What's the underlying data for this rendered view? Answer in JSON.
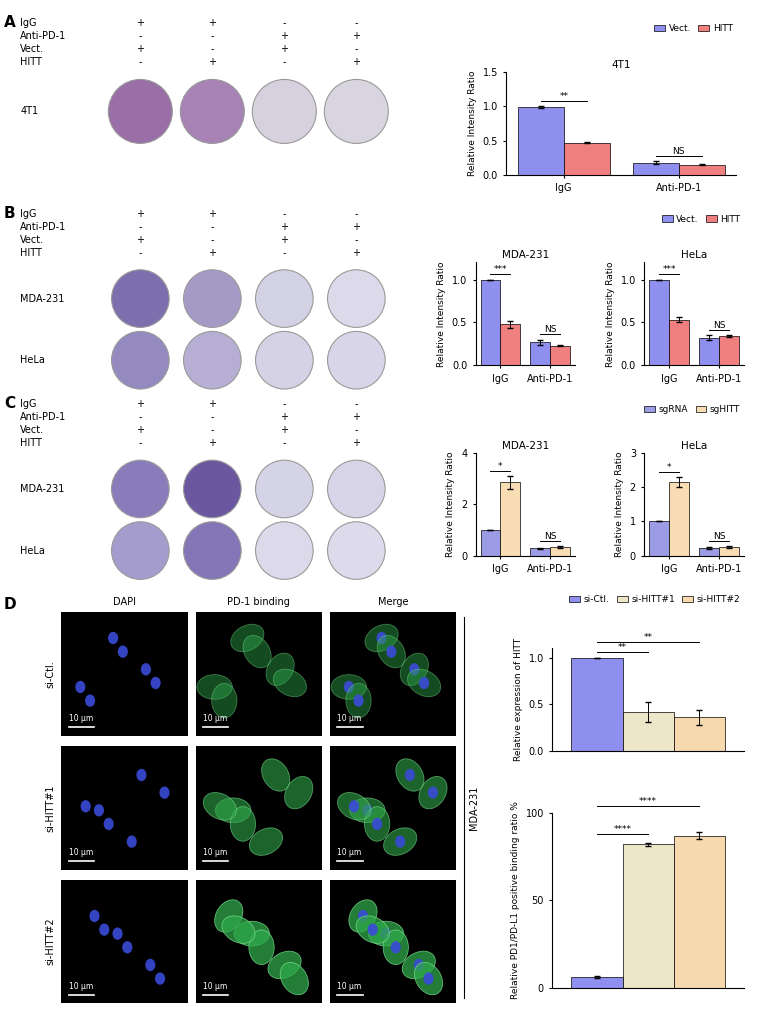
{
  "panel_labels": [
    "A",
    "B",
    "C",
    "D"
  ],
  "well_panels": [
    {
      "conditions": [
        {
          "label": "IgG",
          "signs": [
            "+",
            "+",
            "-",
            "-"
          ]
        },
        {
          "label": "Anti-PD-1",
          "signs": [
            "-",
            "-",
            "+",
            "+"
          ]
        },
        {
          "label": "Vect.",
          "signs": [
            "+",
            "-",
            "+",
            "-"
          ]
        },
        {
          "label": "HITT",
          "signs": [
            "-",
            "+",
            "-",
            "+"
          ]
        }
      ],
      "rows": [
        {
          "label": "4T1",
          "colors": [
            "#9a6fa8",
            "#a783b5",
            "#d7d0de",
            "#d9d5e0"
          ]
        }
      ]
    },
    {
      "conditions": [
        {
          "label": "IgG",
          "signs": [
            "+",
            "+",
            "-",
            "-"
          ]
        },
        {
          "label": "Anti-PD-1",
          "signs": [
            "-",
            "-",
            "+",
            "+"
          ]
        },
        {
          "label": "Vect.",
          "signs": [
            "+",
            "-",
            "+",
            "-"
          ]
        },
        {
          "label": "HITT",
          "signs": [
            "-",
            "+",
            "-",
            "+"
          ]
        }
      ],
      "rows": [
        {
          "label": "MDA-231",
          "colors": [
            "#7d6fae",
            "#a59ac6",
            "#d3d1e4",
            "#dcdaea"
          ]
        },
        {
          "label": "HeLa",
          "colors": [
            "#948ac0",
            "#b7aed3",
            "#d5d2e6",
            "#d9d5e8"
          ]
        }
      ]
    },
    {
      "conditions": [
        {
          "label": "IgG",
          "signs": [
            "+",
            "+",
            "-",
            "-"
          ]
        },
        {
          "label": "Anti-PD-1",
          "signs": [
            "-",
            "-",
            "+",
            "+"
          ]
        },
        {
          "label": "Vect.",
          "signs": [
            "+",
            "-",
            "+",
            "-"
          ]
        },
        {
          "label": "HITT",
          "signs": [
            "-",
            "+",
            "-",
            "+"
          ]
        }
      ],
      "rows": [
        {
          "label": "MDA-231",
          "colors": [
            "#8a7cba",
            "#6b56a0",
            "#d5d3e6",
            "#d7d4e7"
          ]
        },
        {
          "label": "HeLa",
          "colors": [
            "#a49ccc",
            "#8475b6",
            "#dcd9ea",
            "#dddaeb"
          ]
        }
      ]
    }
  ],
  "microscopy": {
    "columns": [
      "DAPI",
      "PD-1 binding",
      "Merge"
    ],
    "rows": [
      "si-Ctl.",
      "si-HITT#1",
      "si-HITT#2"
    ],
    "scale_bar": "10 μm",
    "cell_line": "MDA-231"
  },
  "chart_data": [
    {
      "type": "bar",
      "title": "4T1",
      "ylabel": "Relative Intensity Ratio",
      "categories": [
        "IgG",
        "Anti-PD-1"
      ],
      "series": [
        {
          "name": "Vect.",
          "color": "#8f8ff0",
          "values": [
            0.99,
            0.18
          ],
          "errors": [
            0.01,
            0.02
          ]
        },
        {
          "name": "HITT",
          "color": "#f08080",
          "values": [
            0.47,
            0.15
          ],
          "errors": [
            0.01,
            0.01
          ]
        }
      ],
      "ylim": [
        0,
        1.5
      ],
      "yticks": [
        {
          "value": 0,
          "label": "0.0"
        },
        0.5,
        {
          "value": 1,
          "label": "1.0"
        },
        1.5
      ],
      "annotations": [
        {
          "text": "**",
          "category": 0,
          "from": 0,
          "to": 1
        },
        {
          "text": "NS",
          "category": 1,
          "from": 0,
          "to": 1
        }
      ],
      "legend": "upper right"
    },
    {
      "type": "bar",
      "title": "MDA-231",
      "ylabel": "Relative Intensity Ratio",
      "categories": [
        "IgG",
        "Anti-PD-1"
      ],
      "series": [
        {
          "name": "Vect.",
          "color": "#8f8ff0",
          "values": [
            1.0,
            0.27
          ],
          "errors": [
            0.0,
            0.03
          ]
        },
        {
          "name": "HITT",
          "color": "#f08080",
          "values": [
            0.48,
            0.23
          ],
          "errors": [
            0.04,
            0.01
          ]
        }
      ],
      "ylim": [
        0,
        1.2
      ],
      "yticks": [
        {
          "value": 0,
          "label": "0.0"
        },
        0.5,
        {
          "value": 1,
          "label": "1.0"
        }
      ],
      "annotations": [
        {
          "text": "***",
          "category": 0,
          "from": 0,
          "to": 1
        },
        {
          "text": "NS",
          "category": 1,
          "from": 0,
          "to": 1
        }
      ]
    },
    {
      "type": "bar",
      "title": "HeLa",
      "ylabel": "Relative Intensity Ratio",
      "categories": [
        "IgG",
        "Anti-PD-1"
      ],
      "series": [
        {
          "name": "Vect.",
          "color": "#8f8ff0",
          "values": [
            1.0,
            0.32
          ],
          "errors": [
            0.0,
            0.03
          ]
        },
        {
          "name": "HITT",
          "color": "#f08080",
          "values": [
            0.53,
            0.34
          ],
          "errors": [
            0.03,
            0.01
          ]
        }
      ],
      "ylim": [
        0,
        1.2
      ],
      "yticks": [
        {
          "value": 0,
          "label": "0.0"
        },
        0.5,
        {
          "value": 1,
          "label": "1.0"
        }
      ],
      "annotations": [
        {
          "text": "***",
          "category": 0,
          "from": 0,
          "to": 1
        },
        {
          "text": "NS",
          "category": 1,
          "from": 0,
          "to": 1
        }
      ],
      "legend": "upper right"
    },
    {
      "type": "bar",
      "title": "MDA-231",
      "ylabel": "Relative Intensity Ratio",
      "categories": [
        "IgG",
        "Anti-PD-1"
      ],
      "series": [
        {
          "name": "sgRNA",
          "color": "#9b9be6",
          "values": [
            1.0,
            0.28
          ],
          "errors": [
            0.0,
            0.03
          ]
        },
        {
          "name": "sgHITT",
          "color": "#f7dcb4",
          "values": [
            2.85,
            0.32
          ],
          "errors": [
            0.25,
            0.04
          ]
        }
      ],
      "ylim": [
        0,
        4
      ],
      "yticks": [
        0,
        2,
        4
      ],
      "annotations": [
        {
          "text": "*",
          "category": 0,
          "from": 0,
          "to": 1
        },
        {
          "text": "NS",
          "category": 1,
          "from": 0,
          "to": 1
        }
      ]
    },
    {
      "type": "bar",
      "title": "HeLa",
      "ylabel": "Relative Intensity Ratio",
      "categories": [
        "IgG",
        "Anti-PD-1"
      ],
      "series": [
        {
          "name": "sgRNA",
          "color": "#9b9be6",
          "values": [
            1.0,
            0.22
          ],
          "errors": [
            0.0,
            0.02
          ]
        },
        {
          "name": "sgHITT",
          "color": "#f7dcb4",
          "values": [
            2.15,
            0.25
          ],
          "errors": [
            0.15,
            0.03
          ]
        }
      ],
      "ylim": [
        0,
        3
      ],
      "yticks": [
        0,
        1,
        2,
        3
      ],
      "annotations": [
        {
          "text": "*",
          "category": 0,
          "from": 0,
          "to": 1
        },
        {
          "text": "NS",
          "category": 1,
          "from": 0,
          "to": 1
        }
      ],
      "legend": "upper right"
    },
    {
      "type": "bar",
      "ylabel": "Relative expression of HITT",
      "categories": [
        null
      ],
      "series": [
        {
          "name": "si-Ctl.",
          "color": "#8f8ff0",
          "values": [
            1.0
          ],
          "errors": [
            0.0
          ]
        },
        {
          "name": "si-HITT#1",
          "color": "#ede6c8",
          "values": [
            0.42
          ],
          "errors": [
            0.11
          ]
        },
        {
          "name": "si-HITT#2",
          "color": "#f7d9b0",
          "values": [
            0.36
          ],
          "errors": [
            0.08
          ]
        }
      ],
      "ylim": [
        0,
        1.1
      ],
      "yticks": [
        {
          "value": 0,
          "label": "0.0"
        },
        0.5,
        {
          "value": 1,
          "label": "1.0"
        }
      ],
      "annotations": [
        {
          "text": "**",
          "category": 0,
          "from": 0,
          "to": 1
        },
        {
          "text": "**",
          "category": 0,
          "from": 0,
          "to": 2
        }
      ],
      "legend": "upper right",
      "tick_labels": "y"
    },
    {
      "type": "bar",
      "ylabel": "Relative PD1/PD-L1 positive binding ratio %",
      "categories": [
        null
      ],
      "series": [
        {
          "name": "si-Ctl.",
          "color": "#8f8ff0",
          "values": [
            6
          ],
          "errors": [
            0.5
          ]
        },
        {
          "name": "si-HITT#1",
          "color": "#ede6c8",
          "values": [
            82
          ],
          "errors": [
            1
          ]
        },
        {
          "name": "si-HITT#2",
          "color": "#f7d9b0",
          "values": [
            87
          ],
          "errors": [
            2
          ]
        }
      ],
      "ylim": [
        0,
        100
      ],
      "yticks": [
        0,
        50,
        100
      ],
      "annotations": [
        {
          "text": "****",
          "category": 0,
          "from": 0,
          "to": 1
        },
        {
          "text": "****",
          "category": 0,
          "from": 0,
          "to": 2
        }
      ],
      "tick_labels": "y"
    }
  ]
}
